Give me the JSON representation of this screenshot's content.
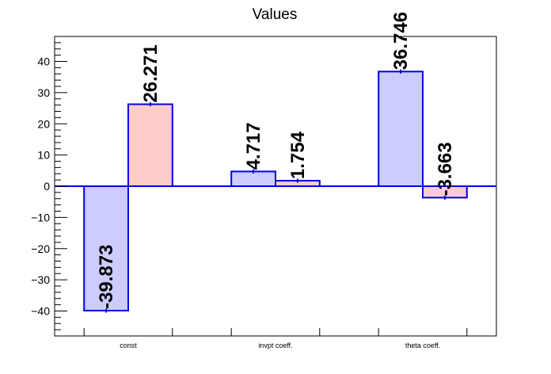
{
  "chart_data": {
    "type": "bar",
    "title": "Values",
    "xlabel": "",
    "ylabel": "",
    "categories": [
      "const",
      "invpt coeff.",
      "theta coeff."
    ],
    "series": [
      {
        "values": [
          -39.873,
          4.717,
          36.746
        ],
        "labels": [
          "-39.873",
          "4.717",
          "36.746"
        ],
        "color": "#ccccff"
      },
      {
        "values": [
          26.271,
          1.754,
          -3.663
        ],
        "labels": [
          "26.271",
          "1.754",
          "-3.663"
        ],
        "color": "#ffcccc"
      }
    ],
    "ylim": [
      -48,
      48
    ],
    "yticks": [
      -40,
      -30,
      -20,
      -10,
      0,
      10,
      20,
      30,
      40
    ],
    "ytick_labels": [
      "−40",
      "−30",
      "−20",
      "−10",
      "0",
      "10",
      "20",
      "30",
      "40"
    ],
    "outline_color": "#0000dd",
    "grid": false,
    "legend": "none"
  }
}
